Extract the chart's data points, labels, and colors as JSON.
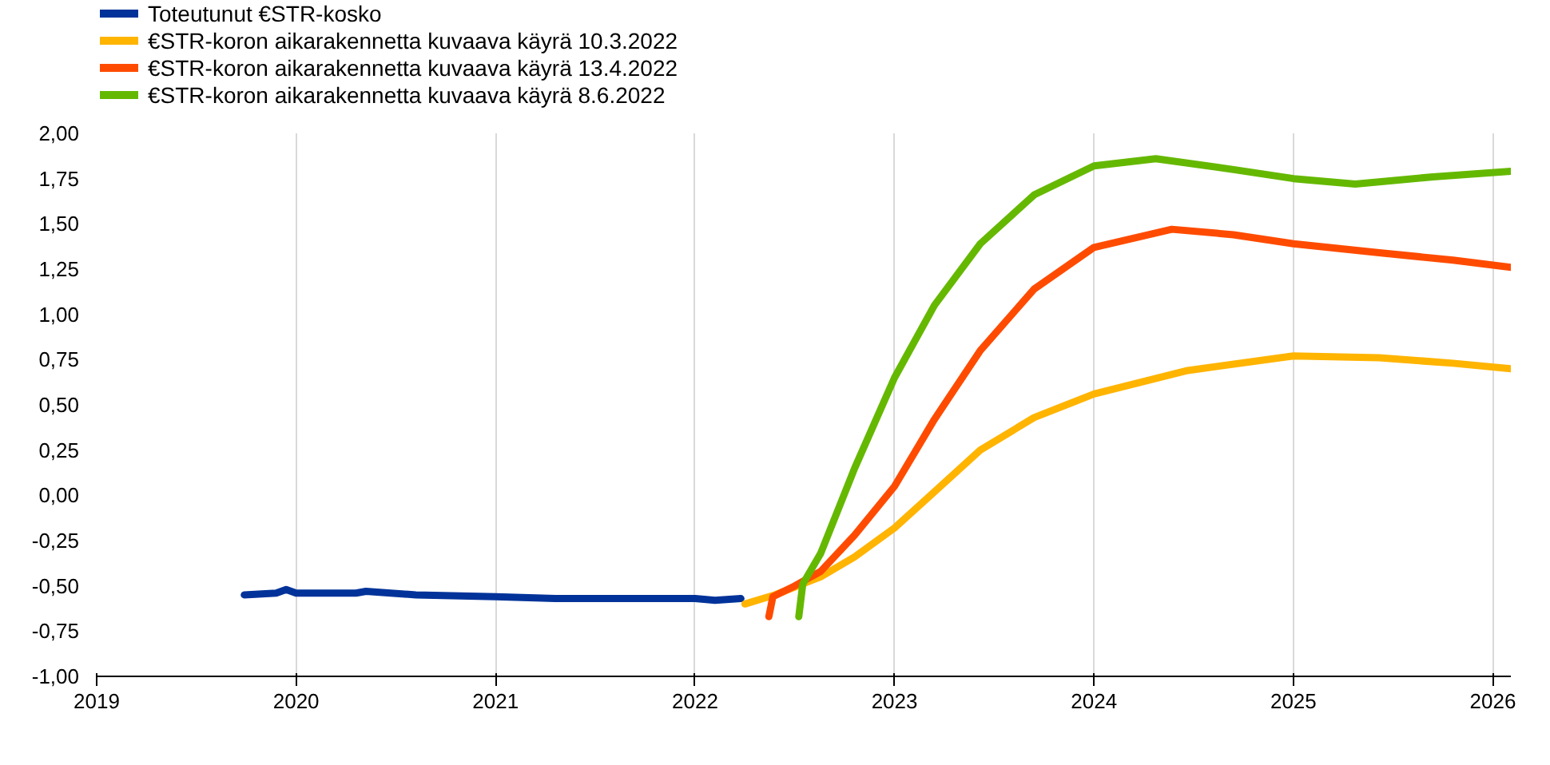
{
  "chart_data": {
    "type": "line",
    "xlim": [
      2019,
      2026.09
    ],
    "xticks": [
      2019,
      2020,
      2021,
      2022,
      2023,
      2024,
      2025,
      2026
    ],
    "ylim": [
      -1.0,
      2.0
    ],
    "yticks": [
      {
        "value": -1.0,
        "label": "-1,00"
      },
      {
        "value": -0.75,
        "label": "-0,75"
      },
      {
        "value": -0.5,
        "label": "-0,50"
      },
      {
        "value": -0.25,
        "label": "-0,25"
      },
      {
        "value": 0,
        "label": "0,00"
      },
      {
        "value": 0.25,
        "label": "0,25"
      },
      {
        "value": 0.5,
        "label": "0,50"
      },
      {
        "value": 0.75,
        "label": "0,75"
      },
      {
        "value": 1.0,
        "label": "1,00"
      },
      {
        "value": 1.25,
        "label": "1,25"
      },
      {
        "value": 1.5,
        "label": "1,50"
      },
      {
        "value": 1.75,
        "label": "1,75"
      },
      {
        "value": 2.0,
        "label": "2,00"
      }
    ],
    "grid": "x",
    "legend": "top left",
    "line_style": "solid",
    "marker": "none",
    "series": [
      {
        "name": "Toteutunut €STR-kosko",
        "color": "#003299",
        "x": [
          2019.74,
          2019.9,
          2019.95,
          2020.0,
          2020.3,
          2020.35,
          2020.6,
          2021.0,
          2021.3,
          2021.6,
          2022.0,
          2022.1,
          2022.23
        ],
        "values": [
          -0.55,
          -0.54,
          -0.52,
          -0.54,
          -0.54,
          -0.53,
          -0.55,
          -0.56,
          -0.57,
          -0.57,
          -0.57,
          -0.58,
          -0.57
        ]
      },
      {
        "name": "€STR-koron aikarakennetta kuvaava käyrä 10.3.2022",
        "color": "#ffb400",
        "x": [
          2022.25,
          2022.4,
          2022.63,
          2022.8,
          2023.0,
          2023.2,
          2023.43,
          2023.7,
          2024.0,
          2024.47,
          2025.0,
          2025.43,
          2025.8,
          2026.09
        ],
        "values": [
          -0.6,
          -0.55,
          -0.45,
          -0.34,
          -0.18,
          0.02,
          0.25,
          0.43,
          0.56,
          0.69,
          0.77,
          0.76,
          0.73,
          0.7
        ]
      },
      {
        "name": "€STR-koron aikarakennetta kuvaava käyrä 13.4.2022",
        "color": "#ff4b00",
        "x": [
          2022.37,
          2022.39,
          2022.5,
          2022.63,
          2022.8,
          2023.0,
          2023.2,
          2023.43,
          2023.7,
          2024.0,
          2024.39,
          2024.7,
          2025.0,
          2025.43,
          2025.8,
          2026.09
        ],
        "values": [
          -0.67,
          -0.56,
          -0.5,
          -0.42,
          -0.22,
          0.05,
          0.42,
          0.8,
          1.14,
          1.37,
          1.47,
          1.44,
          1.39,
          1.34,
          1.3,
          1.26
        ]
      },
      {
        "name": "€STR-koron aikarakennetta kuvaava käyrä 8.6.2022",
        "color": "#65b800",
        "x": [
          2022.52,
          2022.54,
          2022.63,
          2022.8,
          2023.0,
          2023.2,
          2023.43,
          2023.7,
          2024.0,
          2024.31,
          2024.7,
          2025.0,
          2025.31,
          2025.7,
          2026.09
        ],
        "values": [
          -0.67,
          -0.49,
          -0.32,
          0.15,
          0.65,
          1.05,
          1.39,
          1.66,
          1.82,
          1.86,
          1.8,
          1.75,
          1.72,
          1.76,
          1.79
        ]
      }
    ]
  }
}
